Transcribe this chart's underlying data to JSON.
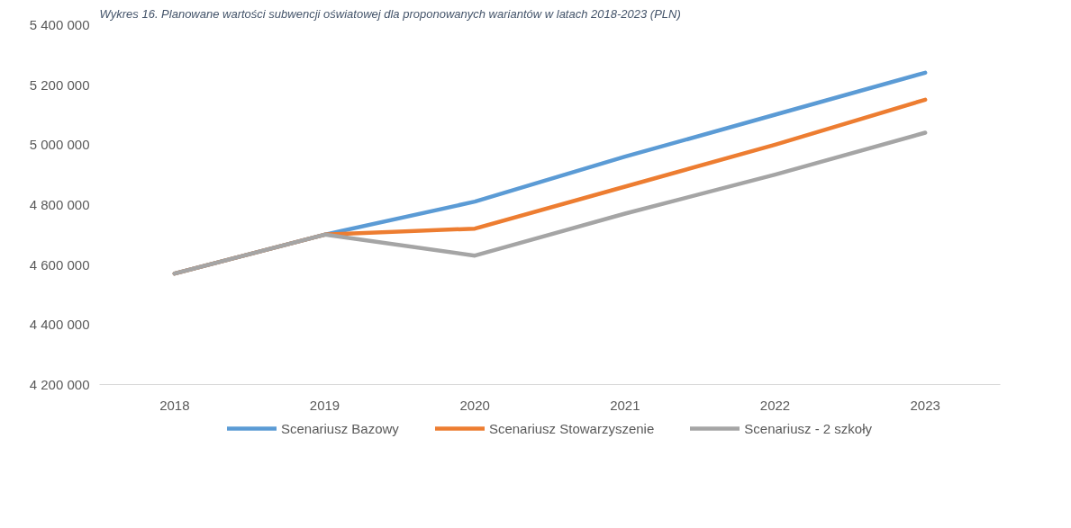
{
  "chart_data": {
    "type": "line",
    "title": "Wykres 16. Planowane wartości subwencji oświatowej dla proponowanych wariantów w latach 2018-2023 (PLN)",
    "categories": [
      "2018",
      "2019",
      "2020",
      "2021",
      "2022",
      "2023"
    ],
    "series": [
      {
        "name": "Scenariusz Bazowy",
        "color": "#5b9bd5",
        "values": [
          4570000,
          4700000,
          4810000,
          4960000,
          5100000,
          5240000
        ]
      },
      {
        "name": "Scenariusz Stowarzyszenie",
        "color": "#ed7d31",
        "values": [
          4570000,
          4700000,
          4720000,
          4860000,
          5000000,
          5150000
        ]
      },
      {
        "name": "Scenariusz - 2 szkoły",
        "color": "#a5a5a5",
        "values": [
          4570000,
          4700000,
          4630000,
          4770000,
          4900000,
          5040000
        ]
      }
    ],
    "ylim": [
      4200000,
      5400000
    ],
    "yticks": [
      {
        "value": 4200000,
        "label": "4 200 000"
      },
      {
        "value": 4400000,
        "label": "4 400 000"
      },
      {
        "value": 4600000,
        "label": "4 600 000"
      },
      {
        "value": 4800000,
        "label": "4 800 000"
      },
      {
        "value": 5000000,
        "label": "5 000 000"
      },
      {
        "value": 5200000,
        "label": "5 200 000"
      },
      {
        "value": 5400000,
        "label": "5 400 000"
      }
    ],
    "grid": false,
    "legend": "bottom",
    "marker": "none",
    "line_style": "solid"
  }
}
